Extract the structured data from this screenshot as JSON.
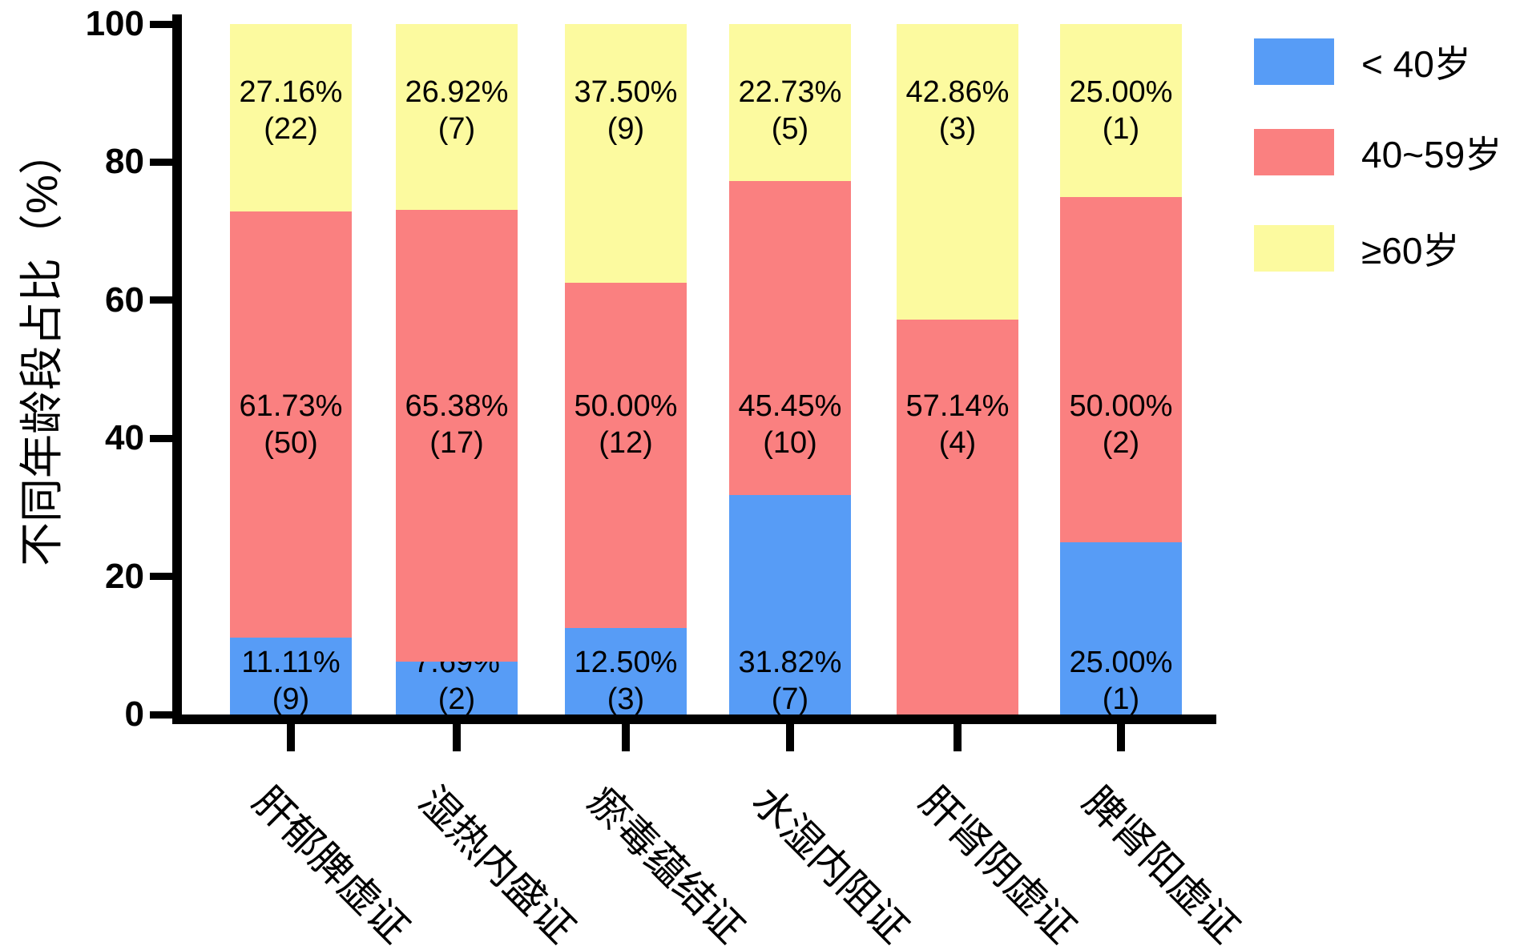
{
  "chart_data": {
    "type": "bar",
    "stacked": true,
    "title": "",
    "xlabel": "",
    "ylabel": "不同年龄段占比（%）",
    "ylim": [
      0,
      100
    ],
    "yticks": [
      0,
      20,
      40,
      60,
      80,
      100
    ],
    "grid": false,
    "legend_position": "top-right",
    "label_format": "percent_and_count",
    "categories": [
      "肝郁脾虚证",
      "湿热内盛证",
      "瘀毒蕴结证",
      "水湿内阻证",
      "肝肾阴虚证",
      "脾肾阳虚证"
    ],
    "series": [
      {
        "name": "< 40岁",
        "color": "#579CF6",
        "values": [
          11.11,
          7.69,
          12.5,
          31.82,
          0,
          25.0
        ],
        "counts": [
          9,
          2,
          3,
          7,
          null,
          1
        ]
      },
      {
        "name": "40~59岁",
        "color": "#FA8080",
        "values": [
          61.73,
          65.38,
          50.0,
          45.45,
          57.14,
          50.0
        ],
        "counts": [
          50,
          17,
          12,
          10,
          4,
          2
        ]
      },
      {
        "name": "≥60岁",
        "color": "#FCFA9F",
        "values": [
          27.16,
          26.92,
          37.5,
          22.73,
          42.86,
          25.0
        ],
        "counts": [
          22,
          7,
          9,
          5,
          3,
          1
        ]
      }
    ]
  }
}
